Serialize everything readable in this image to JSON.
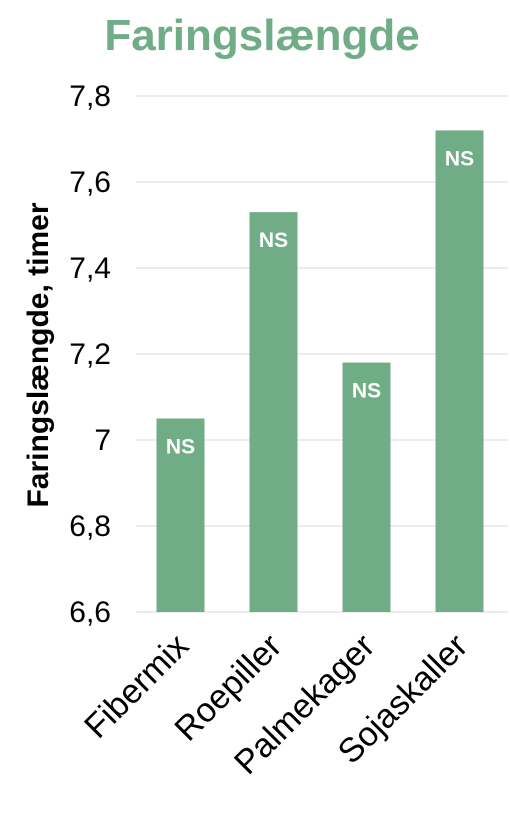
{
  "chart_data": {
    "type": "bar",
    "title": "Faringslængde",
    "ylabel": "Faringslængde, timer",
    "xlabel": "",
    "categories": [
      "Fibermix",
      "Roepiller",
      "Palmekager",
      "Sojaskaller"
    ],
    "values": [
      7.05,
      7.53,
      7.18,
      7.72
    ],
    "data_labels": [
      "NS",
      "NS",
      "NS",
      "NS"
    ],
    "ylim": [
      6.6,
      7.8
    ],
    "yticks": [
      6.6,
      6.8,
      7.0,
      7.2,
      7.4,
      7.6,
      7.8
    ],
    "ytick_labels": [
      "6,6",
      "6,8",
      "7",
      "7,2",
      "7,4",
      "7,6",
      "7,8"
    ],
    "grid": true,
    "legend": "none",
    "colors": {
      "bar": "#70ad86",
      "title": "#70ad86",
      "grid": "#d9d9d9"
    }
  }
}
